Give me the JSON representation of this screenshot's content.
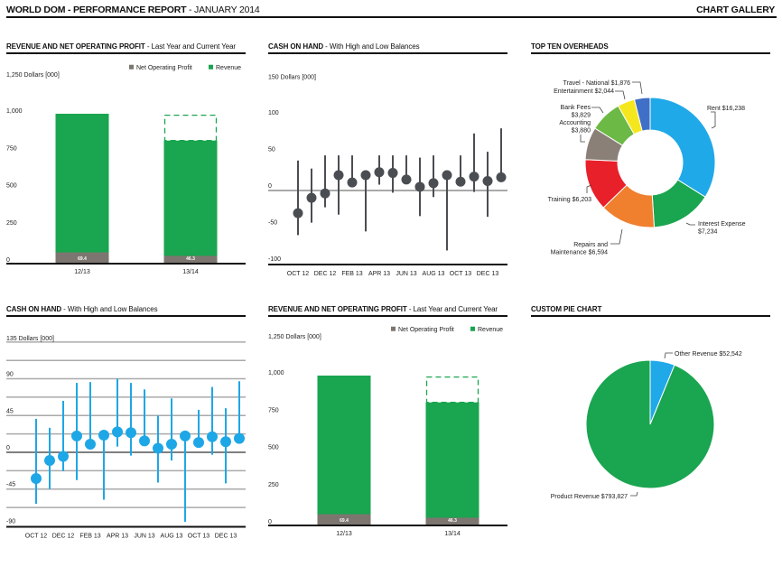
{
  "header": {
    "title_bold": "WORLD DOM - PERFORMANCE REPORT",
    "title_rest": " - JANUARY 2014",
    "gallery_link": "CHART GALLERY"
  },
  "chart_data": [
    {
      "type": "bar",
      "title": "REVENUE AND NET OPERATING PROFIT",
      "subtitle": " - Last Year and Current Year",
      "ylabel": "1,250 Dollars [000]",
      "ylim": [
        0,
        1250
      ],
      "yticks": [
        "0",
        "250",
        "500",
        "750",
        "1,000"
      ],
      "categories": [
        "12/13",
        "13/14"
      ],
      "series": [
        {
          "name": "Net Operating Profit",
          "values": [
            69.4,
            46.3
          ],
          "value_labels": [
            "69.4",
            "46.3"
          ],
          "color": "#7d7670"
        },
        {
          "name": "Revenue",
          "values": [
            1000,
            820
          ],
          "color": "#1aa550"
        }
      ],
      "dashed_target": [
        null,
        990
      ],
      "legend": "top-right"
    },
    {
      "type": "scatter",
      "title": "CASH ON HAND",
      "subtitle": " - With High and Low Balances",
      "ylabel": "150 Dollars [000]",
      "ylim": [
        -100,
        150
      ],
      "yticks": [
        "-100",
        "-50",
        "0",
        "50",
        "100"
      ],
      "xtick_labels": [
        "OCT 12",
        "DEC 12",
        "FEB 13",
        "APR 13",
        "JUN 13",
        "AUG 13",
        "OCT 13",
        "DEC 13"
      ],
      "color": "#4a4d52",
      "points": [
        {
          "value": -31,
          "high": 41,
          "low": -61
        },
        {
          "value": -10,
          "high": 30,
          "low": -44
        },
        {
          "value": -4,
          "high": 48,
          "low": -23
        },
        {
          "value": 21,
          "high": 48,
          "low": -33
        },
        {
          "value": 11,
          "high": 48,
          "low": 11
        },
        {
          "value": 21,
          "high": 21,
          "low": -56
        },
        {
          "value": 25,
          "high": 48,
          "low": 8
        },
        {
          "value": 24,
          "high": 48,
          "low": -3
        },
        {
          "value": 15,
          "high": 48,
          "low": 15
        },
        {
          "value": 5,
          "high": 45,
          "low": -35
        },
        {
          "value": 10,
          "high": 48,
          "low": -9
        },
        {
          "value": 21,
          "high": 21,
          "low": -82
        },
        {
          "value": 12,
          "high": 48,
          "low": 12
        },
        {
          "value": 19,
          "high": 78,
          "low": -2
        },
        {
          "value": 13,
          "high": 53,
          "low": -36
        },
        {
          "value": 18,
          "high": 85,
          "low": 18
        }
      ]
    },
    {
      "type": "pie",
      "title": "TOP TEN OVERHEADS",
      "donut": true,
      "slices": [
        {
          "label": [
            "Rent $16,238"
          ],
          "value": 16238,
          "color": "#1fa9e8"
        },
        {
          "label": [
            "Interest Expense",
            "$7,234"
          ],
          "value": 7234,
          "color": "#1aa550"
        },
        {
          "label": [
            "Repairs and",
            "Maintenance $6,594"
          ],
          "value": 6594,
          "color": "#f07f2e"
        },
        {
          "label": [
            "Training $6,203"
          ],
          "value": 6203,
          "color": "#e8202a"
        },
        {
          "label": [
            "Accounting",
            "$3,880"
          ],
          "value": 3880,
          "color": "#8a8078"
        },
        {
          "label": [
            "Bank Fees",
            "$3,829"
          ],
          "value": 3829,
          "color": "#6cb946"
        },
        {
          "label": [
            "Entertainment $2,044"
          ],
          "value": 2044,
          "color": "#f5e71e"
        },
        {
          "label": [
            "Travel - National $1,876"
          ],
          "value": 1876,
          "color": "#3f6fc6"
        }
      ]
    },
    {
      "type": "scatter",
      "title": "CASH ON HAND",
      "subtitle": " - With High and Low Balances",
      "ylabel": "135 Dollars [000]",
      "ylim": [
        -90,
        135
      ],
      "yticks": [
        "-90",
        "-45",
        "0",
        "45",
        "90"
      ],
      "grid": true,
      "xtick_labels": [
        "OCT 12",
        "DEC 12",
        "FEB 13",
        "APR 13",
        "JUN 13",
        "AUG 13",
        "OCT 13",
        "DEC 13"
      ],
      "color": "#1ea7e6",
      "points": [
        {
          "value": -32,
          "high": 41,
          "low": -63
        },
        {
          "value": -10,
          "high": 30,
          "low": -45
        },
        {
          "value": -5,
          "high": 63,
          "low": -23
        },
        {
          "value": 20,
          "high": 85,
          "low": -34
        },
        {
          "value": 10,
          "high": 86,
          "low": 10
        },
        {
          "value": 21,
          "high": 21,
          "low": -58
        },
        {
          "value": 25,
          "high": 90,
          "low": 7
        },
        {
          "value": 24,
          "high": 85,
          "low": -4
        },
        {
          "value": 14,
          "high": 77,
          "low": 14
        },
        {
          "value": 5,
          "high": 45,
          "low": -37
        },
        {
          "value": 10,
          "high": 66,
          "low": -10
        },
        {
          "value": 20,
          "high": 20,
          "low": -85
        },
        {
          "value": 12,
          "high": 52,
          "low": 12
        },
        {
          "value": 19,
          "high": 80,
          "low": -3
        },
        {
          "value": 13,
          "high": 54,
          "low": -38
        },
        {
          "value": 17,
          "high": 87,
          "low": 17
        }
      ]
    },
    {
      "type": "bar",
      "title": "REVENUE AND NET OPERATING PROFIT",
      "subtitle": " - Last Year and Current Year",
      "ylabel": "1,250 Dollars [000]",
      "ylim": [
        0,
        1250
      ],
      "yticks": [
        "0",
        "250",
        "500",
        "750",
        "1,000"
      ],
      "categories": [
        "12/13",
        "13/14"
      ],
      "series": [
        {
          "name": "Net Operating Profit",
          "values": [
            69.4,
            46.3
          ],
          "value_labels": [
            "69.4",
            "46.3"
          ],
          "color": "#7d7670"
        },
        {
          "name": "Revenue",
          "values": [
            1000,
            820
          ],
          "color": "#1aa550"
        }
      ],
      "dashed_target": [
        null,
        990
      ],
      "legend": "top-right"
    },
    {
      "type": "pie",
      "title": "CUSTOM PIE CHART",
      "donut": false,
      "slices": [
        {
          "label": [
            "Other Revenue $52,542"
          ],
          "value": 52542,
          "color": "#1fa9e8"
        },
        {
          "label": [
            "Product Revenue $793,827"
          ],
          "value": 793827,
          "color": "#1aa550"
        }
      ]
    }
  ]
}
